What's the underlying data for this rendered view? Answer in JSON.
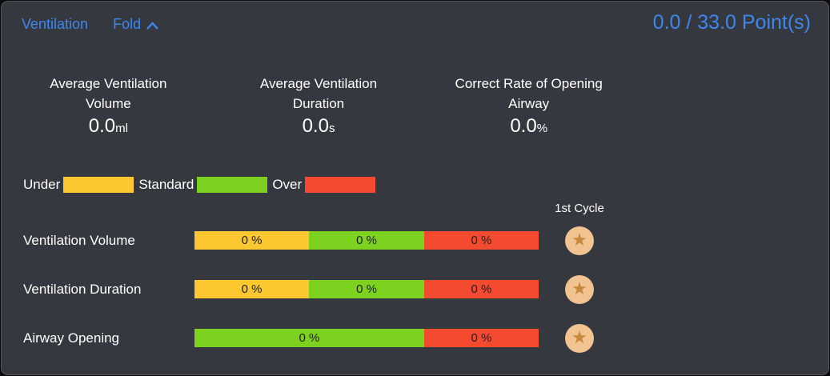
{
  "header": {
    "title": "Ventilation",
    "fold_label": "Fold",
    "points": "0.0 / 33.0 Point(s)"
  },
  "stats": {
    "items": [
      {
        "line1": "Average Ventilation",
        "line2": "Volume",
        "value": "0.0",
        "unit": "ml"
      },
      {
        "line1": "Average Ventilation",
        "line2": "Duration",
        "value": "0.0",
        "unit": "s"
      },
      {
        "line1": "Correct Rate of Opening",
        "line2": "Airway",
        "value": "0.0",
        "unit": "%"
      }
    ]
  },
  "legend": {
    "items": [
      {
        "label": "Under",
        "color": "#FDC72F"
      },
      {
        "label": "Standard",
        "color": "#7CD21E"
      },
      {
        "label": "Over",
        "color": "#F44B30"
      }
    ]
  },
  "cycle_header": "1st Cycle",
  "chart_data": {
    "type": "bar",
    "note": "horizontal stacked status bars, all segments 0 %",
    "rows": [
      {
        "label": "Ventilation Volume",
        "badge": "star",
        "segments": [
          {
            "name": "under",
            "color": "#FDC72F",
            "value": "0 %",
            "fraction": 0.333
          },
          {
            "name": "standard",
            "color": "#7CD21E",
            "value": "0 %",
            "fraction": 0.334
          },
          {
            "name": "over",
            "color": "#F44B30",
            "value": "0 %",
            "fraction": 0.333
          }
        ]
      },
      {
        "label": "Ventilation Duration",
        "badge": "star",
        "segments": [
          {
            "name": "under",
            "color": "#FDC72F",
            "value": "0 %",
            "fraction": 0.333
          },
          {
            "name": "standard",
            "color": "#7CD21E",
            "value": "0 %",
            "fraction": 0.334
          },
          {
            "name": "over",
            "color": "#F44B30",
            "value": "0 %",
            "fraction": 0.333
          }
        ]
      },
      {
        "label": "Airway Opening",
        "badge": "star",
        "segments": [
          {
            "name": "standard",
            "color": "#7CD21E",
            "value": "0 %",
            "fraction": 0.667
          },
          {
            "name": "over",
            "color": "#F44B30",
            "value": "0 %",
            "fraction": 0.333
          }
        ]
      }
    ]
  },
  "icons": {
    "star": "★"
  },
  "colors": {
    "accent_blue": "#3D87EE",
    "panel_bg": "#35383E",
    "under_yellow": "#FDC72F",
    "standard_green": "#7CD21E",
    "over_red": "#F44B30",
    "star_badge_bg": "#F1C391",
    "star_badge_fg": "#C9893C"
  }
}
